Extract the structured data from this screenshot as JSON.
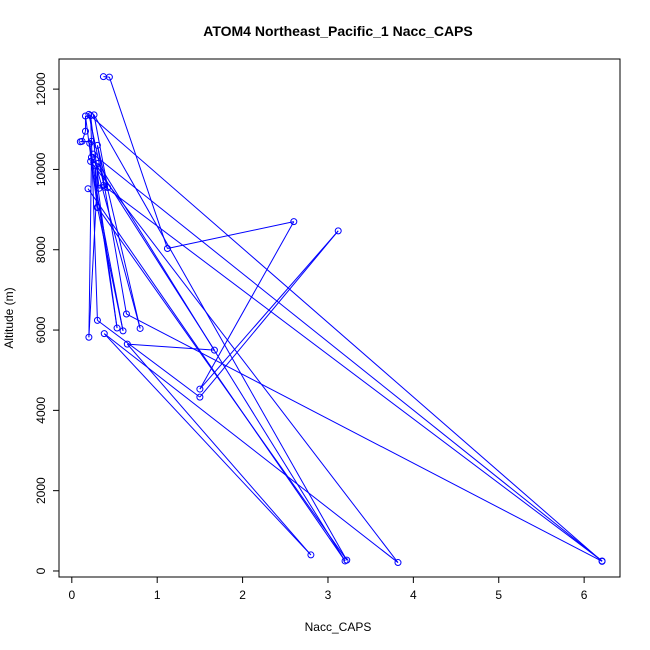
{
  "chart_data": {
    "type": "scatter",
    "title": "ATOM4 Northeast_Pacific_1 Nacc_CAPS",
    "xlabel": "Nacc_CAPS",
    "ylabel": "Altitude (m)",
    "xlim": [
      -0.15,
      6.42
    ],
    "ylim": [
      -150,
      12750
    ],
    "xticks": [
      0,
      1,
      2,
      3,
      4,
      5,
      6
    ],
    "yticks": [
      0,
      2000,
      4000,
      6000,
      8000,
      10000,
      12000
    ],
    "grid": false,
    "color": "#0000ff",
    "series": [
      {
        "name": "",
        "points": [
          [
            0.37,
            12310
          ],
          [
            0.44,
            12300
          ],
          [
            1.12,
            8030
          ],
          [
            2.6,
            8700
          ],
          [
            1.5,
            4530
          ],
          [
            3.12,
            8470
          ],
          [
            1.5,
            4330
          ],
          [
            0.3,
            6240
          ],
          [
            0.22,
            11340
          ],
          [
            0.32,
            9530
          ],
          [
            0.38,
            9560
          ],
          [
            0.2,
            11370
          ],
          [
            6.21,
            240
          ],
          [
            0.64,
            6400
          ],
          [
            0.3,
            10600
          ],
          [
            0.8,
            6040
          ],
          [
            0.25,
            10380
          ],
          [
            6.21,
            250
          ],
          [
            0.37,
            9600
          ],
          [
            0.42,
            9550
          ],
          [
            0.26,
            11360
          ],
          [
            3.22,
            270
          ],
          [
            0.3,
            9060
          ],
          [
            0.16,
            11330
          ],
          [
            0.16,
            10950
          ],
          [
            0.12,
            10700
          ],
          [
            0.1,
            10690
          ],
          [
            0.23,
            10700
          ],
          [
            0.21,
            10650
          ],
          [
            0.53,
            6050
          ],
          [
            0.27,
            10100
          ],
          [
            0.3,
            9050
          ],
          [
            0.6,
            5980
          ],
          [
            0.22,
            10200
          ],
          [
            3.82,
            210
          ],
          [
            0.38,
            5910
          ],
          [
            2.8,
            400
          ],
          [
            0.65,
            5650
          ],
          [
            1.67,
            5500
          ],
          [
            0.23,
            10300
          ],
          [
            0.2,
            5820
          ],
          [
            0.31,
            10150
          ],
          [
            3.2,
            250
          ],
          [
            0.19,
            9520
          ]
        ]
      }
    ]
  }
}
